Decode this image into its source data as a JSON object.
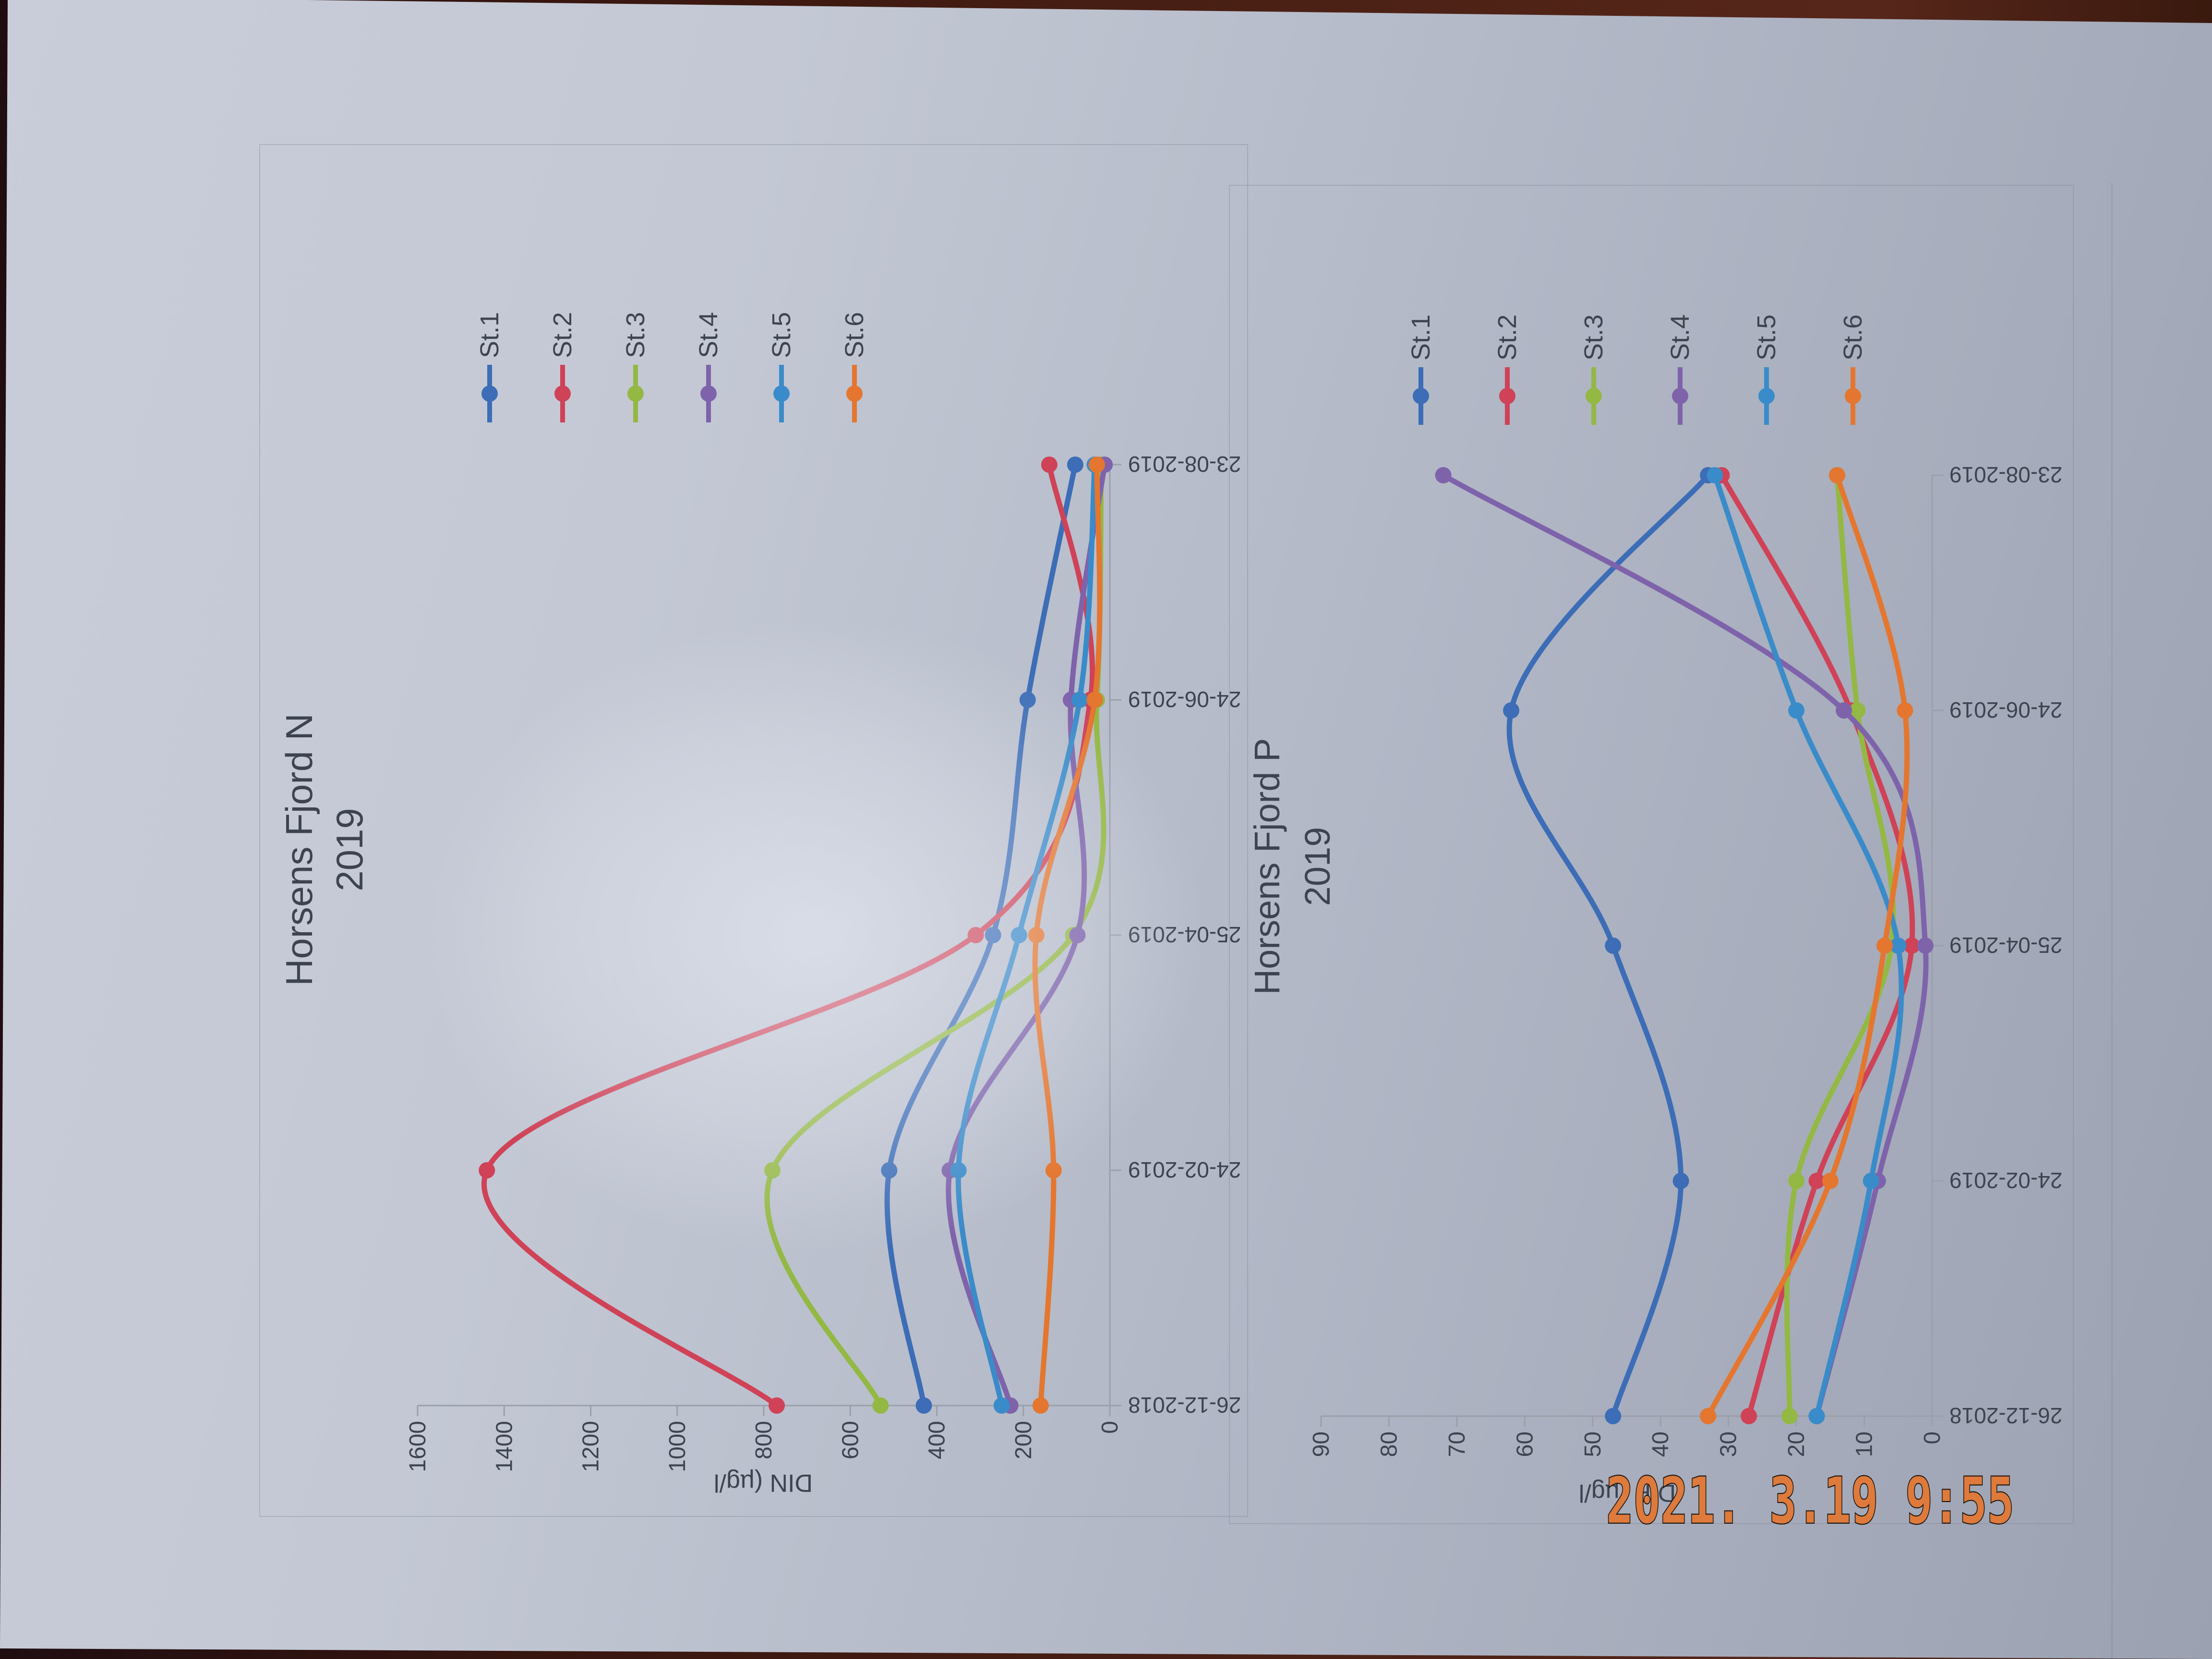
{
  "photo": {
    "timestamp": "2021. 3.19   9:55",
    "timestamp_color": "#dd7a3c",
    "table_color": "#4c2115",
    "paper_color": "#b7bcc9"
  },
  "charts": [
    {
      "title_line1": "Horsens Fjord N",
      "title_line2": "2019",
      "y_axis_title": "DIN (µg/l",
      "chart_data": {
        "type": "line",
        "smoothed": true,
        "grid": false,
        "legend_position": "right",
        "title": "Horsens Fjord N 2019",
        "ylabel": "DIN (µg/l",
        "ylim": [
          0,
          1600
        ],
        "ytick_step": 200,
        "categories": [
          "26-12-2018",
          "24-02-2019",
          "25-04-2019",
          "24-06-2019",
          "23-08-2019"
        ],
        "series": [
          {
            "name": "St.1",
            "color": "#3c6db6",
            "values": [
              430,
              510,
              270,
              190,
              80
            ]
          },
          {
            "name": "St.2",
            "color": "#cf4257",
            "values": [
              770,
              1440,
              310,
              45,
              140
            ]
          },
          {
            "name": "St.3",
            "color": "#94b844",
            "values": [
              530,
              780,
              85,
              30,
              20
            ]
          },
          {
            "name": "St.4",
            "color": "#7e63ab",
            "values": [
              230,
              370,
              75,
              90,
              12
            ]
          },
          {
            "name": "St.5",
            "color": "#3a8bc9",
            "values": [
              250,
              350,
              210,
              70,
              35
            ]
          },
          {
            "name": "St.6",
            "color": "#e4762f",
            "values": [
              160,
              130,
              170,
              35,
              30
            ]
          }
        ]
      }
    },
    {
      "title_line1": "Horsens Fjord P",
      "title_line2": "2019",
      "y_axis_title": "DIP (µg/l",
      "chart_data": {
        "type": "line",
        "smoothed": true,
        "grid": false,
        "legend_position": "right",
        "title": "Horsens Fjord P 2019",
        "ylabel": "DIP (µg/l",
        "ylim": [
          0,
          90
        ],
        "ytick_step": 10,
        "categories": [
          "26-12-2018",
          "24-02-2019",
          "25-04-2019",
          "24-06-2019",
          "23-08-2019"
        ],
        "series": [
          {
            "name": "St.1",
            "color": "#3c6db6",
            "values": [
              47,
              37,
              47,
              62,
              33
            ]
          },
          {
            "name": "St.2",
            "color": "#cf4257",
            "values": [
              27,
              17,
              3,
              12,
              31
            ]
          },
          {
            "name": "St.3",
            "color": "#94b844",
            "values": [
              21,
              20,
              6,
              11,
              14
            ]
          },
          {
            "name": "St.4",
            "color": "#7e63ab",
            "values": [
              17,
              8,
              1,
              13,
              72
            ]
          },
          {
            "name": "St.5",
            "color": "#3a8bc9",
            "values": [
              17,
              9,
              5,
              20,
              32
            ]
          },
          {
            "name": "St.6",
            "color": "#e4762f",
            "values": [
              33,
              15,
              7,
              4,
              14
            ]
          }
        ]
      }
    }
  ]
}
